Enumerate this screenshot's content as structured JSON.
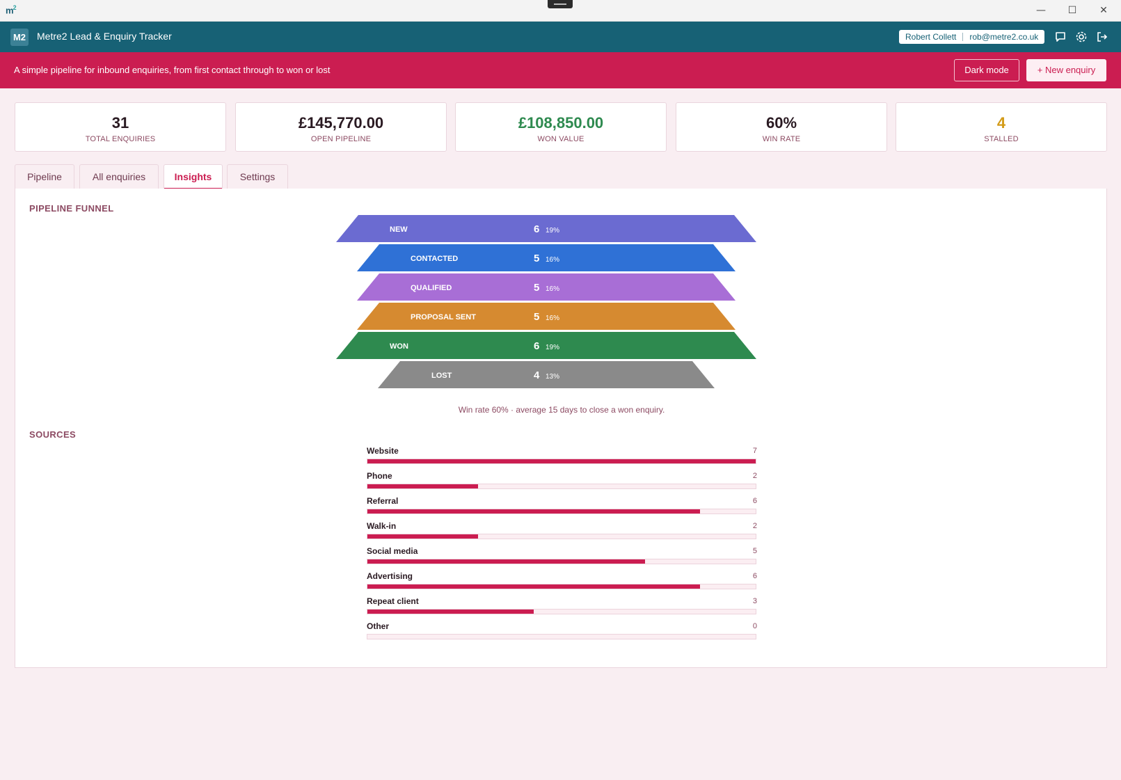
{
  "window": {
    "logo_text": "m",
    "logo_sup": "2",
    "minimize": "—",
    "maximize": "☐",
    "close": "✕"
  },
  "header": {
    "badge": "M2",
    "title": "Metre2 Lead & Enquiry Tracker",
    "user_name": "Robert Collett",
    "user_email": "rob@metre2.co.uk",
    "icons": [
      "chat-icon",
      "settings-icon",
      "logout-icon"
    ]
  },
  "banner": {
    "text": "A simple pipeline for inbound enquiries, from first contact through to won or lost",
    "dark_mode_label": "Dark mode",
    "new_enquiry_label": "+ New enquiry"
  },
  "stats": [
    {
      "value": "31",
      "label": "TOTAL ENQUIRIES",
      "color": "#2a1a22"
    },
    {
      "value": "£145,770.00",
      "label": "OPEN PIPELINE",
      "color": "#2a1a22"
    },
    {
      "value": "£108,850.00",
      "label": "WON VALUE",
      "color": "#2e8a4f"
    },
    {
      "value": "60%",
      "label": "WIN RATE",
      "color": "#2a1a22"
    },
    {
      "value": "4",
      "label": "STALLED",
      "color": "#d39b18"
    }
  ],
  "tabs": [
    {
      "label": "Pipeline",
      "active": false
    },
    {
      "label": "All enquiries",
      "active": false
    },
    {
      "label": "Insights",
      "active": true
    },
    {
      "label": "Settings",
      "active": false
    }
  ],
  "insights": {
    "funnel_title": "PIPELINE FUNNEL",
    "funnel_note": "Win rate 60% · average 15 days to close a won enquiry.",
    "sources_title": "SOURCES"
  },
  "chart_data": [
    {
      "type": "bar",
      "orientation": "funnel",
      "categories": [
        "NEW",
        "CONTACTED",
        "QUALIFIED",
        "PROPOSAL SENT",
        "WON",
        "LOST"
      ],
      "values": [
        6,
        5,
        5,
        5,
        6,
        4
      ],
      "percent_labels": [
        "19%",
        "16%",
        "16%",
        "16%",
        "19%",
        "13%"
      ],
      "colors": [
        "#6b6bd1",
        "#2f71d6",
        "#a86ed6",
        "#d68a30",
        "#2e8a4f",
        "#8a8a8a"
      ]
    },
    {
      "type": "bar",
      "orientation": "horizontal",
      "categories": [
        "Website",
        "Phone",
        "Referral",
        "Walk-in",
        "Social media",
        "Advertising",
        "Repeat client",
        "Other"
      ],
      "values": [
        7,
        2,
        6,
        2,
        5,
        6,
        3,
        0
      ],
      "xlim": [
        0,
        7
      ],
      "color": "#cb1d51"
    }
  ]
}
